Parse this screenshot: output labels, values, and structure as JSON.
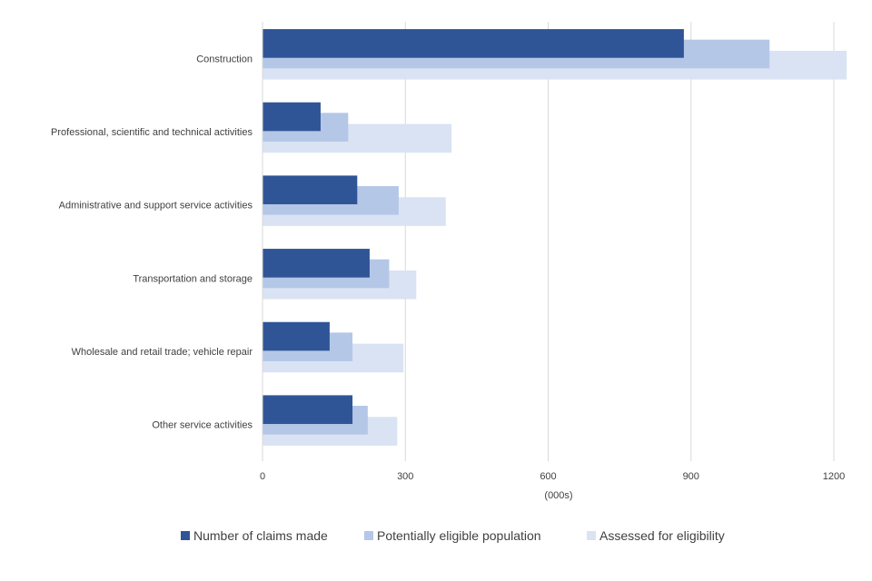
{
  "chart_data": {
    "type": "bar",
    "orientation": "horizontal",
    "title": "",
    "categories": [
      "Construction",
      "Professional, scientific and technical activities",
      "Administrative and support service activities",
      "Transportation and storage",
      "Wholesale and retail trade; vehicle repair",
      "Other service activities"
    ],
    "series": [
      {
        "name": "Number of claims made",
        "color": "#2f5597",
        "values": [
          885,
          122,
          199,
          225,
          141,
          189
        ]
      },
      {
        "name": "Potentially eligible population",
        "color": "#b4c7e7",
        "values": [
          1065,
          180,
          286,
          266,
          189,
          221
        ]
      },
      {
        "name": "Assessed for eligibility",
        "color": "#dae3f3",
        "values": [
          1227,
          397,
          385,
          323,
          296,
          283
        ]
      }
    ],
    "xlim": [
      0,
      1200
    ],
    "xticks": [
      "0",
      "300",
      "600",
      "900",
      "1200"
    ],
    "xlabel": "(000s)",
    "ylabel": "",
    "grid": "vertical",
    "legend_position": "bottom"
  }
}
